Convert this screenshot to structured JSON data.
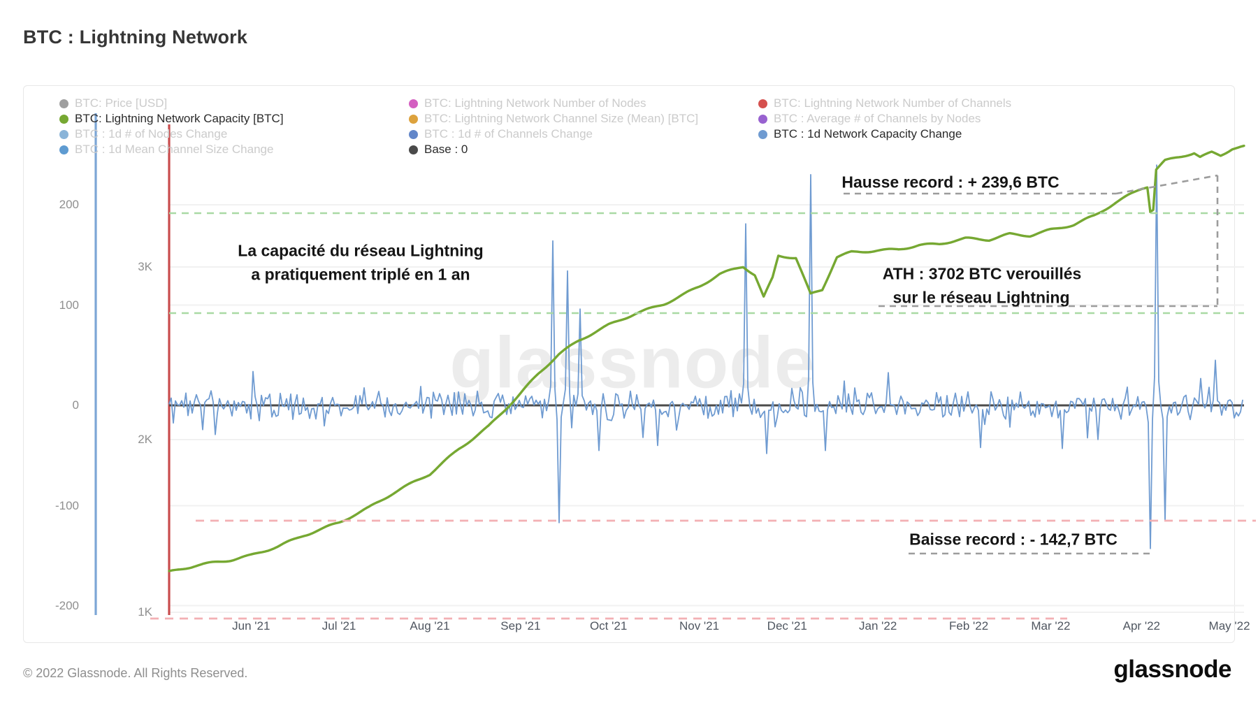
{
  "page": {
    "title": "BTC : Lightning Network",
    "footer_copyright": "© 2022 Glassnode. All Rights Reserved.",
    "brand_logo": "glassnode",
    "watermark": "glassnode"
  },
  "legend": {
    "columns": [
      [
        {
          "label": "BTC: Price [USD]",
          "color": "#9e9e9e",
          "active": false
        },
        {
          "label": "BTC: Lightning Network Capacity [BTC]",
          "color": "#76a832",
          "active": true
        },
        {
          "label": "BTC : 1d # of Nodes Change",
          "color": "#8ab4d8",
          "active": false
        },
        {
          "label": "BTC : 1d Mean Channel Size Change",
          "color": "#5e9bd1",
          "active": false
        }
      ],
      [
        {
          "label": "BTC: Lightning Network Number of Nodes",
          "color": "#d45fc1",
          "active": false
        },
        {
          "label": "BTC: Lightning Network Channel Size (Mean) [BTC]",
          "color": "#dda23d",
          "active": false
        },
        {
          "label": "BTC : 1d # of Channels Change",
          "color": "#6286c9",
          "active": false
        },
        {
          "label": "Base : 0",
          "color": "#4a4a4a",
          "active": true
        }
      ],
      [
        {
          "label": "BTC: Lightning Network Number of Channels",
          "color": "#d5504e",
          "active": false
        },
        {
          "label": "BTC : Average # of Channels by Nodes",
          "color": "#9862d0",
          "active": false
        },
        {
          "label": "BTC : 1d Network Capacity Change",
          "color": "#6f9bd1",
          "active": true
        }
      ]
    ]
  },
  "annotations": {
    "capacity_note_line1": "La capacité du réseau Lightning",
    "capacity_note_line2": "a pratiquement triplé en 1 an",
    "record_rise": "Hausse record : + 239,6 BTC",
    "ath_line1": "ATH : 3702 BTC verouillés",
    "ath_line2": "sur le réseau Lightning",
    "record_drop": "Baisse record : - 142,7 BTC"
  },
  "chart_data": {
    "type": "line",
    "title": "BTC : Lightning Network",
    "grid": true,
    "legend_position": "top",
    "x_domain": [
      "2021-05-04",
      "2022-05-06"
    ],
    "x_ticks": [
      "Jun '21",
      "Jul '21",
      "Aug '21",
      "Sep '21",
      "Oct '21",
      "Nov '21",
      "Dec '21",
      "Jan '22",
      "Feb '22",
      "Mar '22",
      "Apr '22",
      "May '22"
    ],
    "x_tick_dates": [
      "2021-06-01",
      "2021-07-01",
      "2021-08-01",
      "2021-09-01",
      "2021-10-01",
      "2021-11-01",
      "2021-12-01",
      "2022-01-01",
      "2022-02-01",
      "2022-03-01",
      "2022-04-01",
      "2022-05-01"
    ],
    "change_axis": {
      "side": "left",
      "tick_labels": [
        "200",
        "100",
        "0",
        "-100",
        "-200"
      ],
      "tick_values": [
        200,
        100,
        0,
        -100,
        -200
      ],
      "range": [
        -209,
        244
      ],
      "spine_color": "#7ca6d6"
    },
    "capacity_axis": {
      "side": "inner-left",
      "tick_labels": [
        "3K",
        "2K",
        "1K"
      ],
      "tick_values": [
        3000,
        2000,
        1000
      ],
      "range": [
        984,
        3615
      ],
      "spine_color": "#c94c4d"
    },
    "base_line_value": 0,
    "reference_lines": {
      "green_dashed_change_values": [
        192,
        92
      ],
      "red_dashed_change_values": [
        -115,
        -212
      ],
      "color_green": "#a9d9a4",
      "color_red": "#f3b0b4"
    },
    "events": {
      "ath_btc": 3702,
      "record_rise_btc": 239.6,
      "record_drop_btc": -142.7
    },
    "series": [
      {
        "name": "BTC: Lightning Network Capacity [BTC]",
        "axis": "capacity",
        "color": "#76a832",
        "points": [
          [
            "2021-05-04",
            1230
          ],
          [
            "2021-05-13",
            1265
          ],
          [
            "2021-05-25",
            1300
          ],
          [
            "2021-06-01",
            1330
          ],
          [
            "2021-06-10",
            1385
          ],
          [
            "2021-06-19",
            1450
          ],
          [
            "2021-07-01",
            1520
          ],
          [
            "2021-07-11",
            1600
          ],
          [
            "2021-07-20",
            1690
          ],
          [
            "2021-08-01",
            1800
          ],
          [
            "2021-08-11",
            1950
          ],
          [
            "2021-08-21",
            2080
          ],
          [
            "2021-09-01",
            2270
          ],
          [
            "2021-09-07",
            2380
          ],
          [
            "2021-09-14",
            2490
          ],
          [
            "2021-09-21",
            2570
          ],
          [
            "2021-10-01",
            2660
          ],
          [
            "2021-10-10",
            2730
          ],
          [
            "2021-10-20",
            2790
          ],
          [
            "2021-11-01",
            2890
          ],
          [
            "2021-11-08",
            2960
          ],
          [
            "2021-11-16",
            3000
          ],
          [
            "2021-11-20",
            2950
          ],
          [
            "2021-11-23",
            2820
          ],
          [
            "2021-11-26",
            2930
          ],
          [
            "2021-11-28",
            3060
          ],
          [
            "2021-12-04",
            3050
          ],
          [
            "2021-12-09",
            2840
          ],
          [
            "2021-12-13",
            2870
          ],
          [
            "2021-12-18",
            3060
          ],
          [
            "2021-12-23",
            3090
          ],
          [
            "2022-01-01",
            3100
          ],
          [
            "2022-01-08",
            3105
          ],
          [
            "2022-01-15",
            3125
          ],
          [
            "2022-01-22",
            3130
          ],
          [
            "2022-01-31",
            3160
          ],
          [
            "2022-02-08",
            3155
          ],
          [
            "2022-02-15",
            3190
          ],
          [
            "2022-02-22",
            3185
          ],
          [
            "2022-03-01",
            3220
          ],
          [
            "2022-03-09",
            3250
          ],
          [
            "2022-03-16",
            3300
          ],
          [
            "2022-03-23",
            3370
          ],
          [
            "2022-04-01",
            3450
          ],
          [
            "2022-04-03",
            3462
          ],
          [
            "2022-04-04",
            3319
          ],
          [
            "2022-04-05",
            3330
          ],
          [
            "2022-04-06",
            3560
          ],
          [
            "2022-04-09",
            3610
          ],
          [
            "2022-04-15",
            3640
          ],
          [
            "2022-04-19",
            3660
          ],
          [
            "2022-04-21",
            3635
          ],
          [
            "2022-04-25",
            3665
          ],
          [
            "2022-04-28",
            3650
          ],
          [
            "2022-05-02",
            3690
          ],
          [
            "2022-05-06",
            3702
          ]
        ]
      },
      {
        "name": "BTC : 1d Network Capacity Change",
        "axis": "change",
        "color": "#6f9bd1",
        "baseline": "daily oscillation around 0, roughly ±10 to ±30 BTC",
        "key_spikes": [
          [
            "2021-09-12",
            164
          ],
          [
            "2021-09-14",
            -117
          ],
          [
            "2021-09-17",
            134
          ],
          [
            "2021-09-21",
            96
          ],
          [
            "2021-09-28",
            -45
          ],
          [
            "2021-10-13",
            -32
          ],
          [
            "2021-10-18",
            -40
          ],
          [
            "2021-11-17",
            181
          ],
          [
            "2021-11-24",
            -48
          ],
          [
            "2021-12-09",
            230
          ],
          [
            "2021-12-14",
            -45
          ],
          [
            "2022-02-05",
            -42
          ],
          [
            "2022-03-05",
            -43
          ],
          [
            "2022-03-17",
            -34
          ],
          [
            "2022-04-04",
            -142.7
          ],
          [
            "2022-04-06",
            239.6
          ],
          [
            "2022-04-09",
            -115
          ],
          [
            "2022-04-26",
            45
          ]
        ]
      },
      {
        "name": "Base : 0",
        "axis": "change",
        "color": "#4a4a4a",
        "value": 0
      }
    ]
  }
}
